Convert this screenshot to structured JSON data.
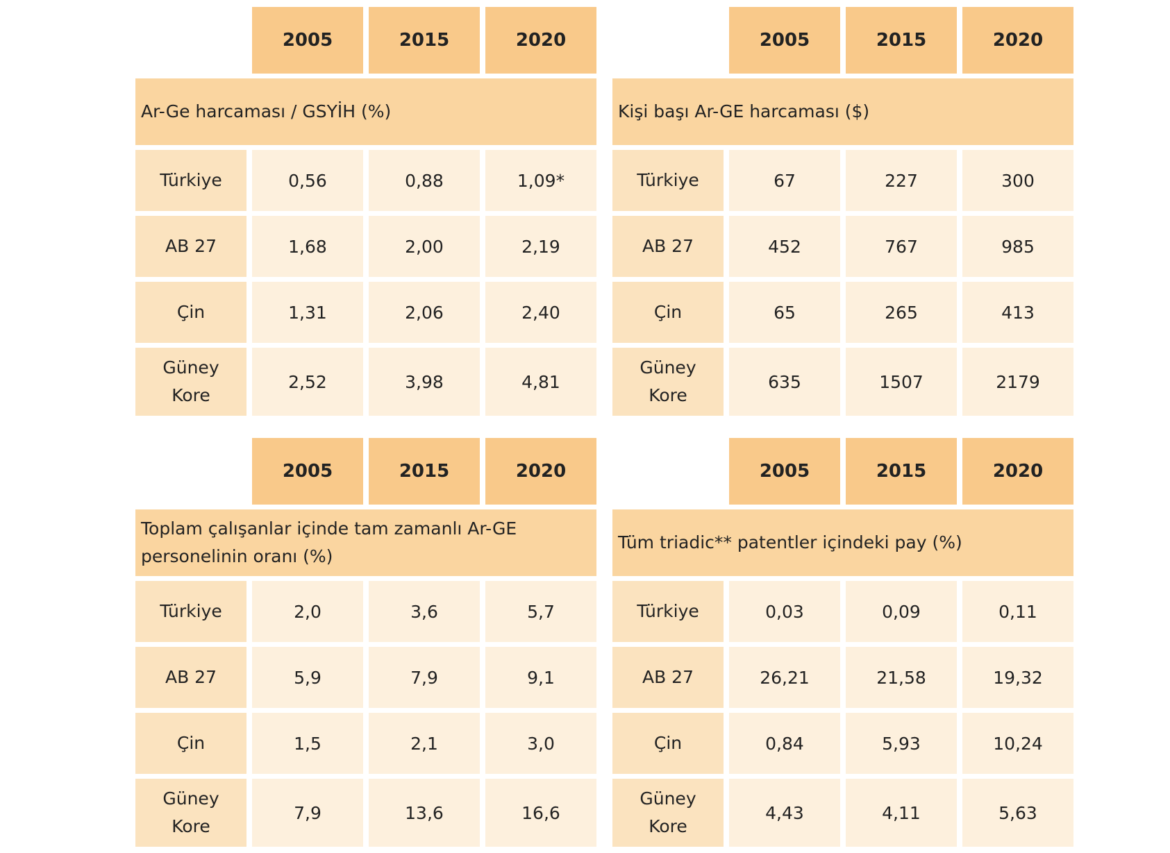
{
  "tables": [
    {
      "years": [
        "2005",
        "2015",
        "2020"
      ],
      "title": "Ar-Ge harcaması / GSYİH (%)",
      "rows": [
        {
          "label": "Türkiye",
          "values": [
            "0,56",
            "0,88",
            "1,09*"
          ]
        },
        {
          "label": "AB 27",
          "values": [
            "1,68",
            "2,00",
            "2,19"
          ]
        },
        {
          "label": "Çin",
          "values": [
            "1,31",
            "2,06",
            "2,40"
          ]
        },
        {
          "label": "Güney Kore",
          "values": [
            "2,52",
            "3,98",
            "4,81"
          ]
        }
      ]
    },
    {
      "years": [
        "2005",
        "2015",
        "2020"
      ],
      "title": "Kişi başı Ar-GE harcaması ($)",
      "rows": [
        {
          "label": "Türkiye",
          "values": [
            "67",
            "227",
            "300"
          ]
        },
        {
          "label": "AB 27",
          "values": [
            "452",
            "767",
            "985"
          ]
        },
        {
          "label": "Çin",
          "values": [
            "65",
            "265",
            "413"
          ]
        },
        {
          "label": "Güney Kore",
          "values": [
            "635",
            "1507",
            "2179"
          ]
        }
      ]
    },
    {
      "years": [
        "2005",
        "2015",
        "2020"
      ],
      "title": "Toplam çalışanlar içinde tam zamanlı Ar-GE personelinin oranı (%)",
      "rows": [
        {
          "label": "Türkiye",
          "values": [
            "2,0",
            "3,6",
            "5,7"
          ]
        },
        {
          "label": "AB 27",
          "values": [
            "5,9",
            "7,9",
            "9,1"
          ]
        },
        {
          "label": "Çin",
          "values": [
            "1,5",
            "2,1",
            "3,0"
          ]
        },
        {
          "label": "Güney Kore",
          "values": [
            "7,9",
            "13,6",
            "16,6"
          ]
        }
      ]
    },
    {
      "years": [
        "2005",
        "2015",
        "2020"
      ],
      "title": "Tüm triadic** patentler içindeki pay (%)",
      "rows": [
        {
          "label": "Türkiye",
          "values": [
            "0,03",
            "0,09",
            "0,11"
          ]
        },
        {
          "label": "AB 27",
          "values": [
            "26,21",
            "21,58",
            "19,32"
          ]
        },
        {
          "label": "Çin",
          "values": [
            "0,84",
            "5,93",
            "10,24"
          ]
        },
        {
          "label": "Güney Kore",
          "values": [
            "4,43",
            "4,11",
            "5,63"
          ]
        }
      ]
    }
  ]
}
